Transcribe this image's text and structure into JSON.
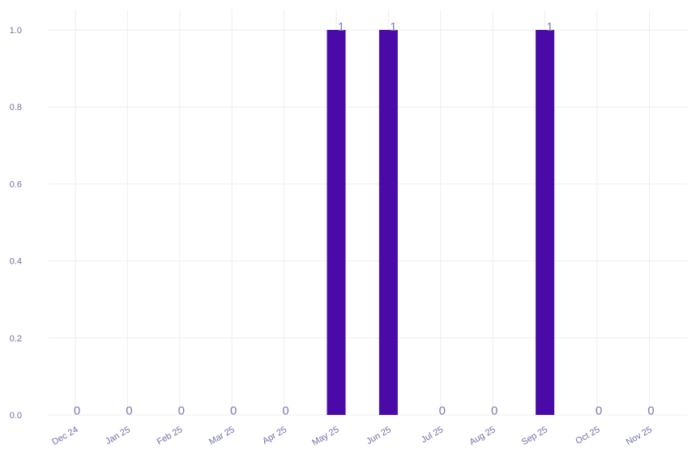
{
  "chart_data": {
    "type": "bar",
    "categories": [
      "Dec 24",
      "Jan 25",
      "Feb 25",
      "Mar 25",
      "Apr 25",
      "May 25",
      "Jun 25",
      "Jul 25",
      "Aug 25",
      "Sep 25",
      "Oct 25",
      "Nov 25"
    ],
    "values": [
      0,
      0,
      0,
      0,
      0,
      1,
      1,
      0,
      0,
      1,
      0,
      0
    ],
    "data_labels": [
      "0",
      "0",
      "0",
      "0",
      "0",
      "1",
      "1",
      "0",
      "0",
      "1",
      "0",
      "0"
    ],
    "yticks": [
      "0.0",
      "0.2",
      "0.4",
      "0.6",
      "0.8",
      "1.0"
    ],
    "ylim": [
      0,
      1
    ],
    "title": "",
    "xlabel": "",
    "ylabel": "",
    "grid": true,
    "bar_color": "#4a0aa8",
    "tick_color": "#6e6ea8",
    "grid_color": "#eeeeee"
  }
}
